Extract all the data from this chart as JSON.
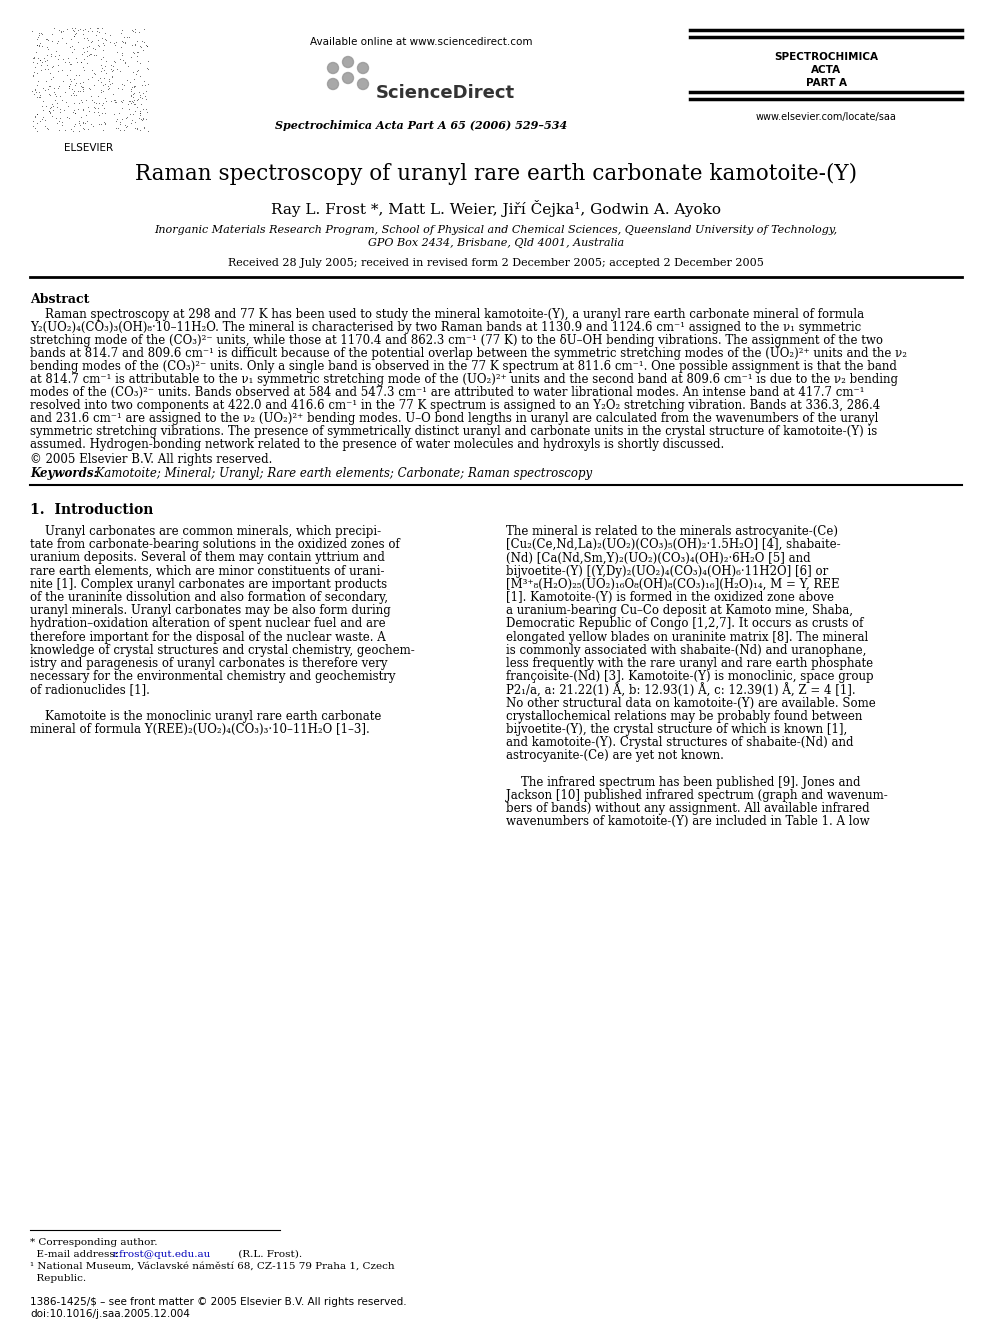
{
  "title": "Raman spectroscopy of uranyl rare earth carbonate kamotoite-(Y)",
  "authors": "Ray L. Frost *, Matt L. Weier, Jiří Čejka¹, Godwin A. Ayoko",
  "affiliation1": "Inorganic Materials Research Program, School of Physical and Chemical Sciences, Queensland University of Technology,",
  "affiliation2": "GPO Box 2434, Brisbane, Qld 4001, Australia",
  "received": "Received 28 July 2005; received in revised form 2 December 2005; accepted 2 December 2005",
  "journal_header": "Spectrochimica Acta Part A 65 (2006) 529–534",
  "available_online": "Available online at www.sciencedirect.com",
  "journal_name1": "SPECTROCHIMICA",
  "journal_name2": "ACTA",
  "journal_name3": "PART A",
  "journal_url": "www.elsevier.com/locate/saa",
  "abstract_title": "Abstract",
  "copyright": "© 2005 Elsevier B.V. All rights reserved.",
  "keywords_label": "Keywords:",
  "keywords": "  Kamotoite; Mineral; Uranyl; Rare earth elements; Carbonate; Raman spectroscopy",
  "section1_title": "1.  Introduction",
  "issn": "1386-1425/$ – see front matter © 2005 Elsevier B.V. All rights reserved.",
  "doi": "doi:10.1016/j.saa.2005.12.004",
  "bg_color": "#ffffff",
  "text_color": "#000000",
  "blue_color": "#0000bb",
  "line_color": "#000000"
}
